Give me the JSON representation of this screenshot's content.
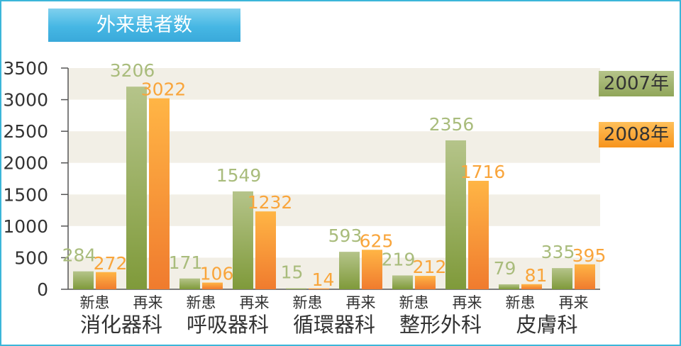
{
  "chart_data": {
    "type": "bar",
    "title": "外来患者数",
    "ylim": [
      0,
      3500
    ],
    "yticks": [
      0,
      500,
      1000,
      1500,
      2000,
      2500,
      3000,
      3500
    ],
    "groups": [
      "消化器科",
      "呼吸器科",
      "循環器科",
      "整形外科",
      "皮膚科"
    ],
    "categories": [
      "新患",
      "再来",
      "新患",
      "再来",
      "新患",
      "再来",
      "新患",
      "再来",
      "新患",
      "再来"
    ],
    "series": [
      {
        "name": "2007年",
        "values": [
          284,
          3206,
          171,
          1549,
          15,
          593,
          219,
          2356,
          79,
          335
        ]
      },
      {
        "name": "2008年",
        "values": [
          272,
          3022,
          106,
          1232,
          14,
          625,
          212,
          1716,
          81,
          395
        ]
      }
    ],
    "grid": true,
    "legend_position": "right"
  },
  "colors": {
    "series_2007_top": "#b5c48a",
    "series_2007_bottom": "#7f9a3a",
    "series_2008_top": "#ffb545",
    "series_2008_bottom": "#f07b2e",
    "label_2007": "#a9bc7c",
    "label_2008": "#f9a53b",
    "band": "#f2efe6",
    "frame": "#3bb6d9"
  }
}
